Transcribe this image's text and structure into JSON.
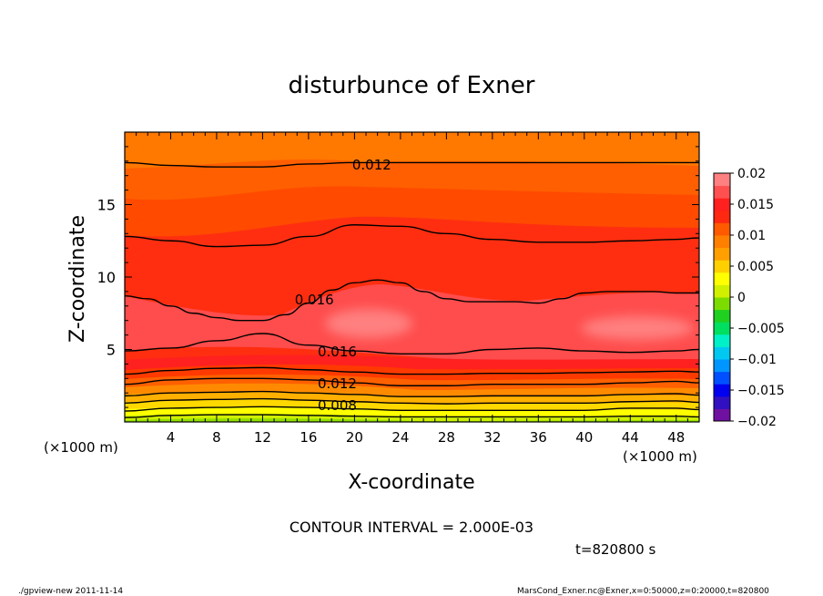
{
  "chart_data": {
    "type": "heatmap",
    "title": "disturbunce of Exner",
    "xlabel": "X-coordinate",
    "ylabel": "Z-coordinate",
    "x_unit_left": "(×1000 m)",
    "x_unit_right": "(×1000 m)",
    "xlim": [
      0,
      50
    ],
    "ylim": [
      0,
      20
    ],
    "x_ticks": [
      4,
      8,
      12,
      16,
      20,
      24,
      28,
      32,
      36,
      40,
      44,
      48
    ],
    "y_ticks": [
      5,
      10,
      15
    ],
    "contour_interval_label": "CONTOUR INTERVAL = 2.000E-03",
    "time_label": "t=820800 s",
    "colorbar": {
      "min": -0.02,
      "max": 0.02,
      "tick_labels": [
        "0.02",
        "0.015",
        "0.01",
        "0.005",
        "0",
        "−0.005",
        "−0.01",
        "−0.015",
        "−0.02"
      ],
      "tick_values": [
        0.02,
        0.015,
        0.01,
        0.005,
        0,
        -0.005,
        -0.01,
        -0.015,
        -0.02
      ],
      "colors": [
        "#6f10a0",
        "#3010c0",
        "#0000f0",
        "#0050ff",
        "#0096ff",
        "#00c8f0",
        "#00f0c8",
        "#00e060",
        "#20d020",
        "#7cdc00",
        "#d0f000",
        "#ffff00",
        "#ffd000",
        "#ffa000",
        "#ff8000",
        "#ff5a00",
        "#ff2810",
        "#ff2020",
        "#ff5050",
        "#ff8080"
      ]
    },
    "contour_labels": [
      {
        "text": "0.012",
        "x": 21.5,
        "y": 17.8
      },
      {
        "text": "0.016",
        "x": 16.5,
        "y": 8.5
      },
      {
        "text": "0.016",
        "x": 18.5,
        "y": 4.9
      },
      {
        "text": "0.012",
        "x": 18.5,
        "y": 2.7
      },
      {
        "text": "0.008",
        "x": 18.5,
        "y": 1.2
      }
    ],
    "contours": [
      {
        "level": 0.004,
        "x": [
          0,
          4,
          8,
          12,
          16,
          20,
          24,
          28,
          32,
          36,
          40,
          44,
          48,
          50
        ],
        "y": [
          0.3,
          0.45,
          0.5,
          0.5,
          0.45,
          0.4,
          0.35,
          0.35,
          0.35,
          0.35,
          0.35,
          0.4,
          0.4,
          0.35
        ]
      },
      {
        "level": 0.006,
        "x": [
          0,
          4,
          8,
          12,
          16,
          20,
          24,
          28,
          32,
          36,
          40,
          44,
          48,
          50
        ],
        "y": [
          0.75,
          0.95,
          1.0,
          1.05,
          1.0,
          0.9,
          0.8,
          0.8,
          0.8,
          0.8,
          0.8,
          0.95,
          0.95,
          0.85
        ]
      },
      {
        "level": 0.008,
        "x": [
          0,
          4,
          8,
          12,
          16,
          20,
          24,
          28,
          32,
          36,
          40,
          44,
          48,
          50
        ],
        "y": [
          1.3,
          1.5,
          1.55,
          1.6,
          1.5,
          1.4,
          1.3,
          1.25,
          1.3,
          1.3,
          1.3,
          1.4,
          1.45,
          1.35
        ]
      },
      {
        "level": 0.01,
        "x": [
          0,
          4,
          8,
          12,
          16,
          20,
          24,
          28,
          32,
          36,
          40,
          44,
          48,
          50
        ],
        "y": [
          1.8,
          2.0,
          2.05,
          2.1,
          2.0,
          1.9,
          1.75,
          1.75,
          1.8,
          1.8,
          1.8,
          1.9,
          1.95,
          1.85
        ]
      },
      {
        "level": 0.012,
        "x": [
          0,
          4,
          8,
          12,
          16,
          20,
          24,
          28,
          32,
          36,
          40,
          44,
          48,
          50
        ],
        "y": [
          2.6,
          2.9,
          3.0,
          3.0,
          2.9,
          2.7,
          2.5,
          2.5,
          2.6,
          2.6,
          2.6,
          2.7,
          2.8,
          2.7
        ]
      },
      {
        "level": 0.014,
        "x": [
          0,
          4,
          8,
          12,
          16,
          20,
          24,
          28,
          32,
          36,
          40,
          44,
          48,
          50
        ],
        "y": [
          3.3,
          3.55,
          3.7,
          3.75,
          3.6,
          3.45,
          3.3,
          3.3,
          3.35,
          3.35,
          3.4,
          3.45,
          3.5,
          3.45
        ]
      },
      {
        "level": 0.016,
        "x": [
          0,
          4,
          8,
          12,
          16,
          20,
          24,
          28,
          32,
          36,
          40,
          44,
          48,
          50
        ],
        "y": [
          4.9,
          5.1,
          5.6,
          6.1,
          5.3,
          4.9,
          4.7,
          4.7,
          5.0,
          5.1,
          4.9,
          4.8,
          4.9,
          5.0
        ]
      },
      {
        "level": 0.016,
        "x": [
          0,
          2,
          4,
          6,
          8,
          10,
          12,
          14,
          16,
          18,
          20,
          22,
          24,
          26,
          28,
          30,
          32,
          34,
          36,
          38,
          40,
          42,
          44,
          46,
          48,
          50
        ],
        "y": [
          8.7,
          8.5,
          8.0,
          7.5,
          7.2,
          7.0,
          7.0,
          7.4,
          8.2,
          9.1,
          9.6,
          9.8,
          9.6,
          9.0,
          8.5,
          8.3,
          8.3,
          8.3,
          8.2,
          8.5,
          8.9,
          9.0,
          9.0,
          9.0,
          8.9,
          8.9
        ]
      },
      {
        "level": 0.014,
        "x": [
          0,
          4,
          8,
          12,
          16,
          20,
          24,
          28,
          32,
          36,
          40,
          44,
          48,
          50
        ],
        "y": [
          12.8,
          12.5,
          12.1,
          12.2,
          12.8,
          13.6,
          13.5,
          13.0,
          12.6,
          12.4,
          12.4,
          12.5,
          12.6,
          12.7
        ]
      },
      {
        "level": 0.012,
        "x": [
          0,
          4,
          8,
          12,
          16,
          20,
          24,
          28,
          32,
          36,
          40,
          44,
          48,
          50
        ],
        "y": [
          17.9,
          17.7,
          17.6,
          17.6,
          17.8,
          17.9,
          17.9,
          17.9,
          17.9,
          17.9,
          17.9,
          17.9,
          17.9,
          17.9
        ]
      }
    ]
  },
  "footer": {
    "left": "./gpview-new   2011-11-14",
    "right": "MarsCond_Exner.nc@Exner,x=0:50000,z=0:20000,t=820800"
  }
}
